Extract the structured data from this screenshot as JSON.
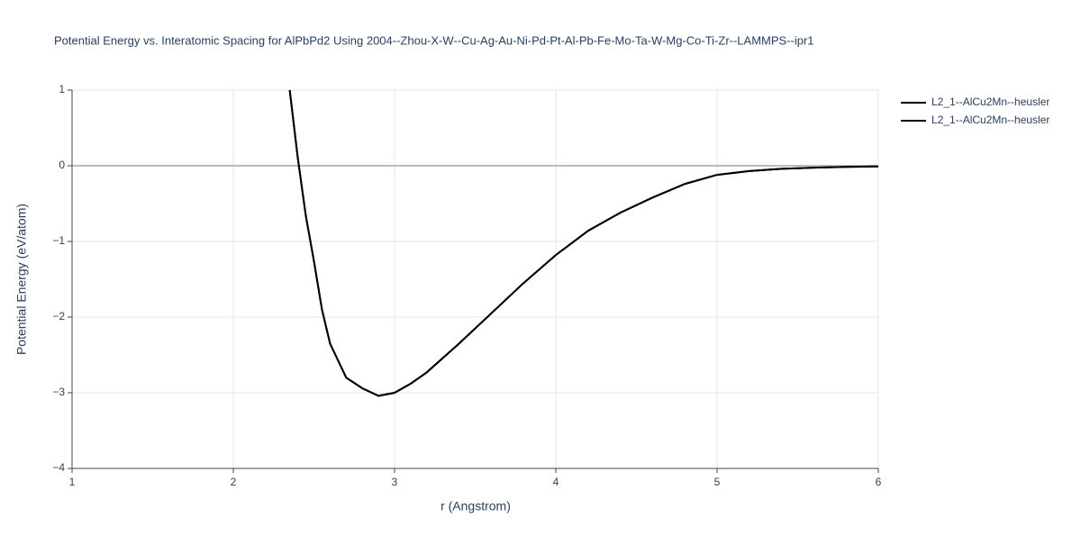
{
  "chart_data": {
    "type": "line",
    "title": "Potential Energy vs. Interatomic Spacing for AlPbPd2 Using 2004--Zhou-X-W--Cu-Ag-Au-Ni-Pd-Pt-Al-Pb-Fe-Mo-Ta-W-Mg-Co-Ti-Zr--LAMMPS--ipr1",
    "xlabel": "r (Angstrom)",
    "ylabel": "Potential Energy (eV/atom)",
    "x": [
      2.35,
      2.4,
      2.45,
      2.5,
      2.55,
      2.6,
      2.7,
      2.8,
      2.9,
      3.0,
      3.1,
      3.2,
      3.4,
      3.6,
      3.8,
      4.0,
      4.2,
      4.4,
      4.6,
      4.8,
      5.0,
      5.2,
      5.4,
      5.6,
      5.8,
      6.0
    ],
    "series": [
      {
        "name": "L2_1--AlCu2Mn--heusler",
        "color": "#000000",
        "values": [
          1.0,
          0.1,
          -0.67,
          -1.26,
          -1.9,
          -2.35,
          -2.8,
          -2.94,
          -3.04,
          -3.0,
          -2.88,
          -2.73,
          -2.35,
          -1.95,
          -1.55,
          -1.18,
          -0.86,
          -0.62,
          -0.42,
          -0.24,
          -0.12,
          -0.07,
          -0.04,
          -0.025,
          -0.015,
          -0.01
        ]
      },
      {
        "name": "L2_1--AlCu2Mn--heusler",
        "color": "#000000",
        "values": [
          1.0,
          0.1,
          -0.67,
          -1.26,
          -1.9,
          -2.35,
          -2.8,
          -2.94,
          -3.04,
          -3.0,
          -2.88,
          -2.73,
          -2.35,
          -1.95,
          -1.55,
          -1.18,
          -0.86,
          -0.62,
          -0.42,
          -0.24,
          -0.12,
          -0.07,
          -0.04,
          -0.025,
          -0.015,
          -0.01
        ]
      }
    ],
    "xlim": [
      1,
      6
    ],
    "xticks": [
      1,
      2,
      3,
      4,
      5,
      6
    ],
    "ylim": [
      -4,
      1
    ],
    "yticks": [
      {
        "value": -4,
        "label": "−4"
      },
      {
        "value": -3,
        "label": "−3"
      },
      {
        "value": -2,
        "label": "−2"
      },
      {
        "value": -1,
        "label": "−1"
      },
      0,
      1
    ],
    "grid": true
  }
}
